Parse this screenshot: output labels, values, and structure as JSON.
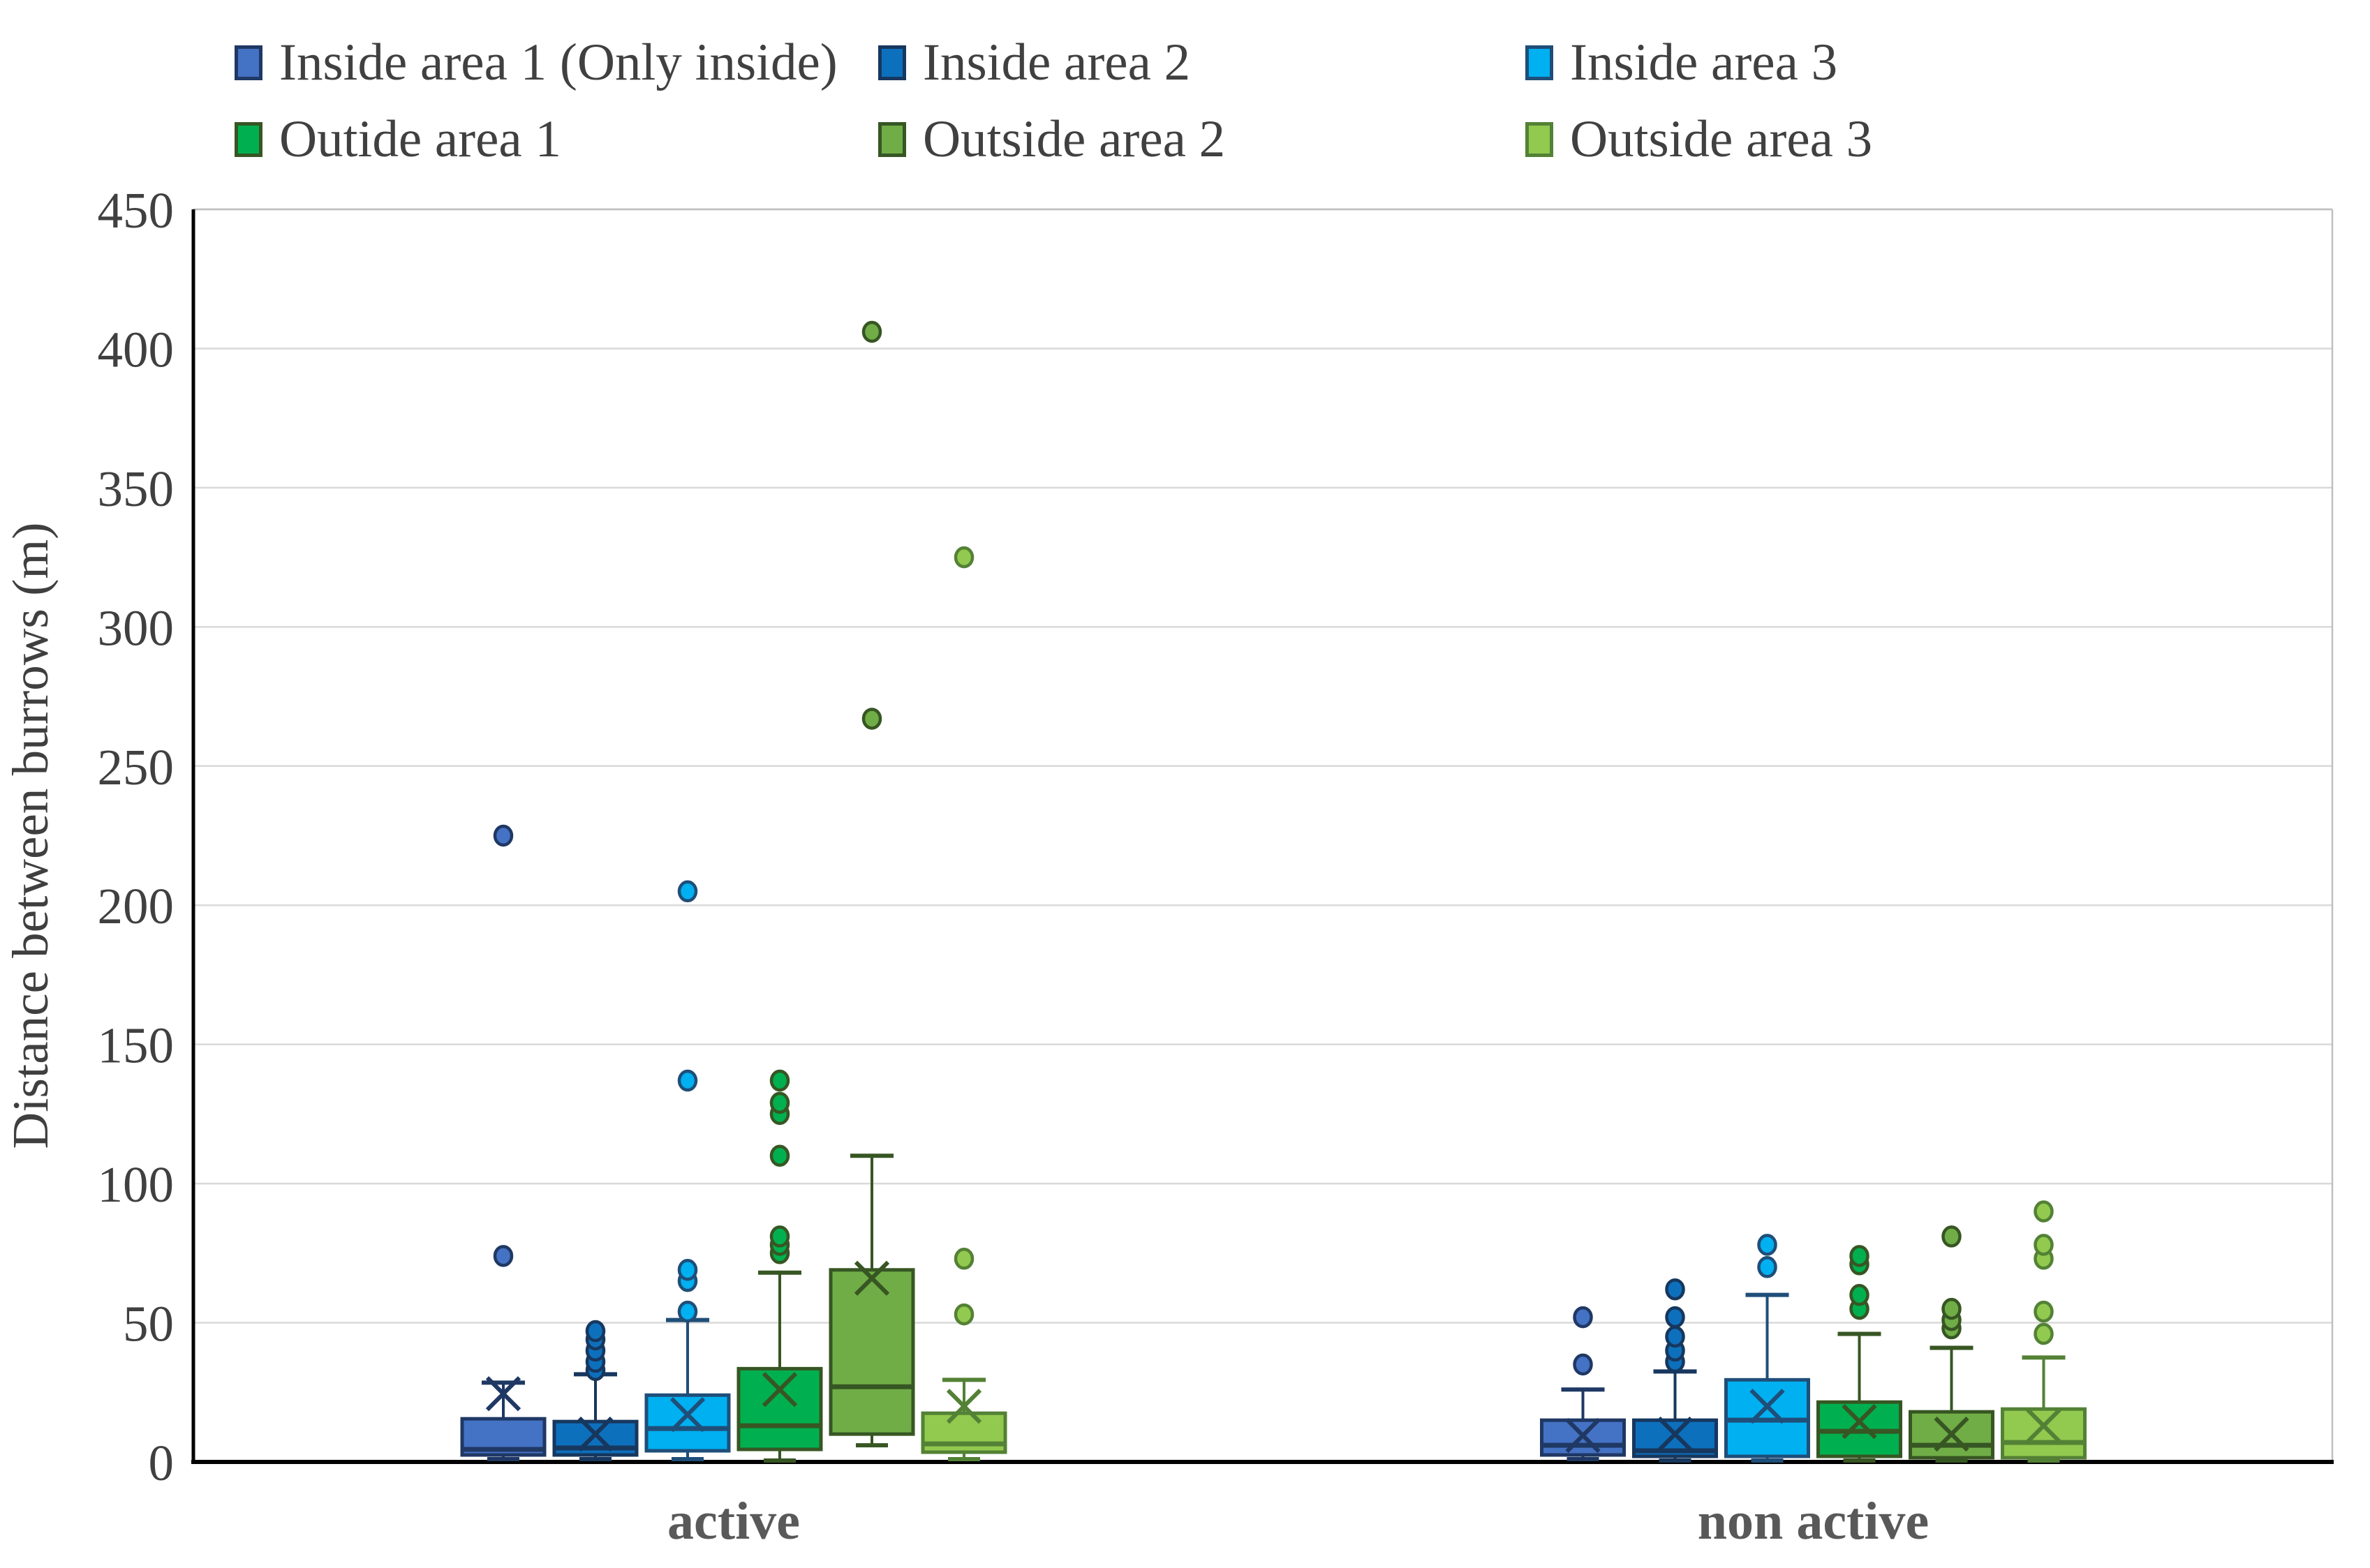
{
  "legend": {
    "items": [
      {
        "label": "Inside area 1 (Only inside)",
        "fill": "#4472C4",
        "stroke": "#1F3864",
        "col": 0,
        "row": 0
      },
      {
        "label": "Inside area 2",
        "fill": "#0D70BD",
        "stroke": "#17375E",
        "col": 1,
        "row": 0
      },
      {
        "label": "Inside area 3",
        "fill": "#00B0F0",
        "stroke": "#1F4E79",
        "col": 2,
        "row": 0
      },
      {
        "label": "Outide area 1",
        "fill": "#00B050",
        "stroke": "#375623",
        "col": 0,
        "row": 1
      },
      {
        "label": "Outside area 2",
        "fill": "#70AD47",
        "stroke": "#375623",
        "col": 1,
        "row": 1
      },
      {
        "label": "Outside area 3",
        "fill": "#92C94F",
        "stroke": "#538135",
        "col": 2,
        "row": 1
      }
    ]
  },
  "colors": {
    "gridline": "#D9D9D9",
    "plot_border": "#BFBFBF",
    "axis_line": "#000000",
    "tick_text": "#404040",
    "axis_title_text": "#3F3F3F",
    "category_text": "#595959"
  },
  "chart_data": {
    "type": "boxplot",
    "title": "",
    "xlabel": "",
    "ylabel": "Distance between burrows (m)",
    "ylim": [
      0,
      450
    ],
    "ytick_step": 50,
    "ytick_labels": [
      "0",
      "50",
      "100",
      "150",
      "200",
      "250",
      "300",
      "350",
      "400",
      "450"
    ],
    "grid": true,
    "legend_position": "top",
    "categories": [
      "active",
      "non active"
    ],
    "series": [
      {
        "name": "Inside area 1 (Only inside)",
        "fill": "#4472C4",
        "stroke": "#1F3864",
        "boxes": [
          {
            "min": 1,
            "q1": 2.5,
            "median": 4.5,
            "q3": 15.5,
            "max": 28.5,
            "mean": 24.5,
            "outliers": [
              74,
              225
            ]
          },
          {
            "min": 1,
            "q1": 2.5,
            "median": 6,
            "q3": 15,
            "max": 26,
            "mean": 9.5,
            "outliers": [
              35,
              52
            ]
          }
        ]
      },
      {
        "name": "Inside area 2",
        "fill": "#0D70BD",
        "stroke": "#17375E",
        "boxes": [
          {
            "min": 1,
            "q1": 2.5,
            "median": 5,
            "q3": 14.5,
            "max": 31.5,
            "mean": 10,
            "outliers": [
              33,
              36,
              40,
              44,
              47
            ]
          },
          {
            "min": 0.5,
            "q1": 2,
            "median": 4,
            "q3": 15,
            "max": 32.5,
            "mean": 10,
            "outliers": [
              36,
              40,
              45,
              52,
              62
            ]
          }
        ]
      },
      {
        "name": "Inside area 3",
        "fill": "#00B0F0",
        "stroke": "#1F4E79",
        "boxes": [
          {
            "min": 1,
            "q1": 4,
            "median": 12,
            "q3": 24,
            "max": 51,
            "mean": 17,
            "outliers": [
              54,
              65,
              69,
              137,
              205
            ]
          },
          {
            "min": 0.5,
            "q1": 2,
            "median": 15,
            "q3": 29.5,
            "max": 60,
            "mean": 20,
            "outliers": [
              70,
              78
            ]
          }
        ]
      },
      {
        "name": "Outide area 1",
        "fill": "#00B050",
        "stroke": "#375623",
        "boxes": [
          {
            "min": 0.5,
            "q1": 4.5,
            "median": 13,
            "q3": 33.5,
            "max": 68,
            "mean": 26,
            "outliers": [
              75,
              78,
              81,
              110,
              125,
              129,
              137
            ]
          },
          {
            "min": 0.5,
            "q1": 2,
            "median": 11,
            "q3": 21.5,
            "max": 46,
            "mean": 14.5,
            "outliers": [
              55,
              60,
              71,
              74
            ]
          }
        ]
      },
      {
        "name": "Outside area 2",
        "fill": "#70AD47",
        "stroke": "#375623",
        "boxes": [
          {
            "min": 6,
            "q1": 10,
            "median": 27,
            "q3": 69,
            "max": 110,
            "mean": 66,
            "outliers": [
              267,
              406
            ]
          },
          {
            "min": 0.5,
            "q1": 1.5,
            "median": 6,
            "q3": 18,
            "max": 41,
            "mean": 10,
            "outliers": [
              48,
              51,
              55,
              81
            ]
          }
        ]
      },
      {
        "name": "Outside area 3",
        "fill": "#92C94F",
        "stroke": "#538135",
        "boxes": [
          {
            "min": 1,
            "q1": 3.5,
            "median": 6.5,
            "q3": 17.5,
            "max": 29.5,
            "mean": 20,
            "outliers": [
              53,
              73,
              325
            ]
          },
          {
            "min": 0.5,
            "q1": 1.5,
            "median": 7,
            "q3": 19,
            "max": 37.5,
            "mean": 13,
            "outliers": [
              46,
              54,
              73,
              78,
              90
            ]
          }
        ]
      }
    ]
  }
}
